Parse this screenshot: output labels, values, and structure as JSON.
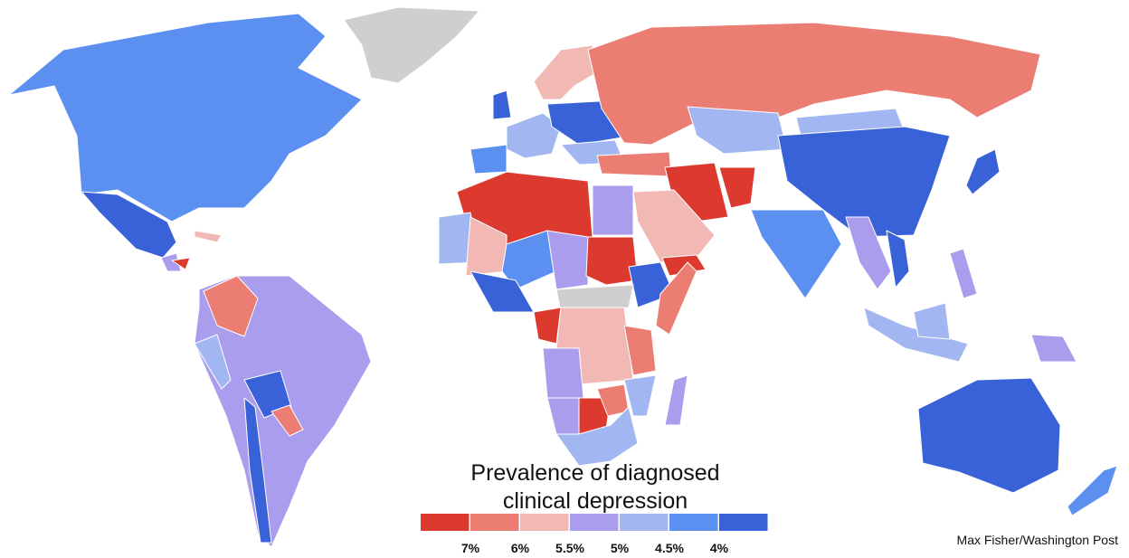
{
  "title_lines": [
    "Prevalence of diagnosed",
    "clinical depression"
  ],
  "legend": {
    "colors": [
      "#dd3a2f",
      "#eb7d73",
      "#f2b9b4",
      "#ab9ded",
      "#a2b7f2",
      "#5b8ff0",
      "#3a62d8"
    ],
    "labels": [
      "7%",
      "6%",
      "5.5%",
      "5%",
      "4.5%",
      "4%"
    ]
  },
  "credit": "Max Fisher/Washington Post"
}
